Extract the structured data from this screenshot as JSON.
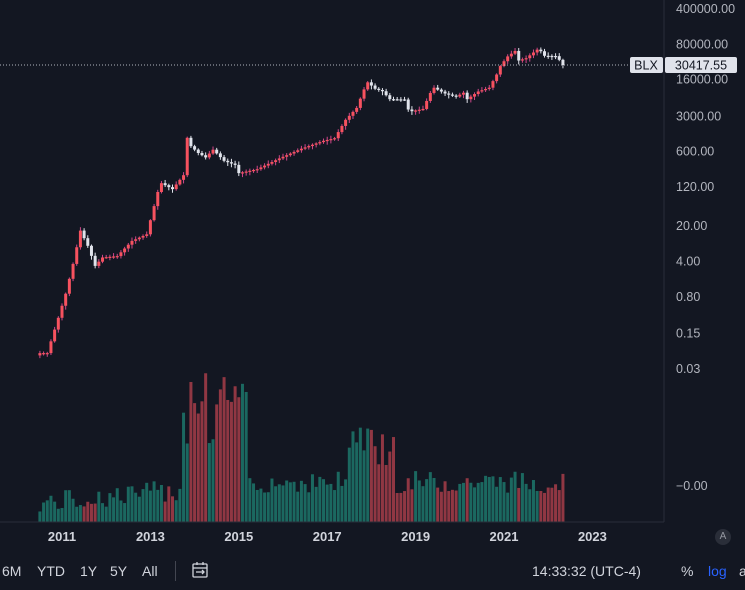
{
  "chart_data": {
    "type": "candlestick",
    "symbol": "BLX",
    "last_price_label": "30417.55",
    "last_price": 30417.55,
    "y_scale": "log",
    "y_ticks": [
      "400000.00",
      "80000.00",
      "16000.00",
      "3000.00",
      "600.00",
      "120.00",
      "20.00",
      "4.00",
      "0.80",
      "0.15",
      "0.03"
    ],
    "volume_tick": "−0.00",
    "x_ticks": [
      "2011",
      "2013",
      "2015",
      "2017",
      "2019",
      "2021",
      "2023"
    ],
    "colors": {
      "up": "#f7525f",
      "up_wick": "#d0468b",
      "down": "#e0e3eb",
      "vol_up": "#22ab94",
      "vol_down": "#f7525f",
      "bg": "#131722"
    },
    "monthly_close_anchors": [
      [
        "2010-07",
        0.06
      ],
      [
        "2010-09",
        0.06
      ],
      [
        "2010-12",
        0.3
      ],
      [
        "2011-02",
        0.9
      ],
      [
        "2011-04",
        3.5
      ],
      [
        "2011-06",
        16
      ],
      [
        "2011-08",
        8
      ],
      [
        "2011-10",
        3.2
      ],
      [
        "2011-12",
        4.7
      ],
      [
        "2012-04",
        5
      ],
      [
        "2012-08",
        10
      ],
      [
        "2012-12",
        13.5
      ],
      [
        "2013-03",
        93
      ],
      [
        "2013-04",
        139
      ],
      [
        "2013-07",
        106
      ],
      [
        "2013-10",
        200
      ],
      [
        "2013-11",
        1100
      ],
      [
        "2013-12",
        750
      ],
      [
        "2014-02",
        550
      ],
      [
        "2014-04",
        450
      ],
      [
        "2014-06",
        640
      ],
      [
        "2014-09",
        385
      ],
      [
        "2014-12",
        320
      ],
      [
        "2015-01",
        220
      ],
      [
        "2015-06",
        263
      ],
      [
        "2015-12",
        430
      ],
      [
        "2016-06",
        670
      ],
      [
        "2016-12",
        960
      ],
      [
        "2017-03",
        1080
      ],
      [
        "2017-06",
        2500
      ],
      [
        "2017-09",
        4300
      ],
      [
        "2017-11",
        10000
      ],
      [
        "2017-12",
        13800
      ],
      [
        "2018-02",
        10300
      ],
      [
        "2018-04",
        9200
      ],
      [
        "2018-06",
        6400
      ],
      [
        "2018-10",
        6300
      ],
      [
        "2018-11",
        4000
      ],
      [
        "2018-12",
        3700
      ],
      [
        "2019-03",
        4100
      ],
      [
        "2019-05",
        8500
      ],
      [
        "2019-06",
        10800
      ],
      [
        "2019-09",
        8300
      ],
      [
        "2019-12",
        7200
      ],
      [
        "2020-02",
        8600
      ],
      [
        "2020-03",
        6400
      ],
      [
        "2020-06",
        9100
      ],
      [
        "2020-09",
        10800
      ],
      [
        "2020-11",
        19700
      ],
      [
        "2020-12",
        29000
      ],
      [
        "2021-02",
        45000
      ],
      [
        "2021-04",
        57700
      ],
      [
        "2021-05",
        37300
      ],
      [
        "2021-07",
        41500
      ],
      [
        "2021-10",
        61300
      ],
      [
        "2021-11",
        57000
      ],
      [
        "2021-12",
        46300
      ],
      [
        "2022-03",
        45500
      ],
      [
        "2022-04",
        38500
      ],
      [
        "2022-05",
        30417.55
      ]
    ]
  },
  "toolbar": {
    "ranges": [
      "6M",
      "YTD",
      "1Y",
      "5Y",
      "All"
    ],
    "time": "14:33:32 (UTC-4)",
    "percent": "%",
    "log": "log",
    "auto": "A",
    "overflow": "a"
  }
}
